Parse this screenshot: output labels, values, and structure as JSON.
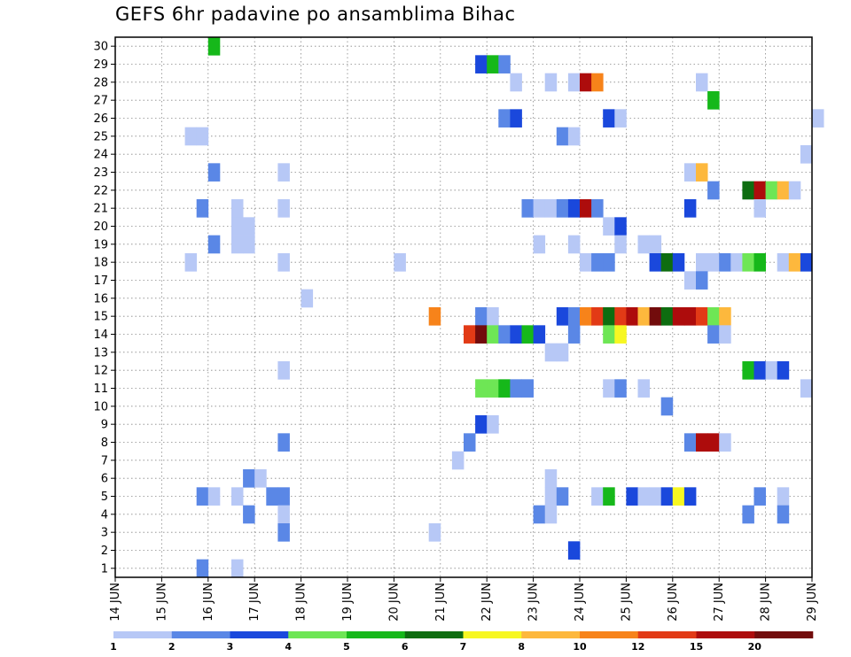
{
  "chart_data": {
    "type": "heatmap",
    "title": "GEFS 6hr padavine po ansamblima Bihac",
    "x_tick_labels": [
      "14 JUN",
      "15 JUN",
      "16 JUN",
      "17 JUN",
      "18 JUN",
      "19 JUN",
      "20 JUN",
      "21 JUN",
      "22 JUN",
      "23 JUN",
      "24 JUN",
      "25 JUN",
      "26 JUN",
      "27 JUN",
      "28 JUN",
      "29 JUN"
    ],
    "x_range_days": [
      14,
      29
    ],
    "y_range": [
      1,
      30
    ],
    "y_ticks": [
      1,
      2,
      3,
      4,
      5,
      6,
      7,
      8,
      9,
      10,
      11,
      12,
      13,
      14,
      15,
      16,
      17,
      18,
      19,
      20,
      21,
      22,
      23,
      24,
      25,
      26,
      27,
      28,
      29,
      30
    ],
    "time_step_hours": 6,
    "grid": true,
    "colorbar": {
      "levels": [
        "1",
        "2",
        "3",
        "4",
        "5",
        "6",
        "7",
        "8",
        "10",
        "12",
        "15",
        "20"
      ],
      "colors": [
        "#b7c8f6",
        "#5a87e6",
        "#1a48dc",
        "#6ee655",
        "#16b81a",
        "#0e6d10",
        "#f7f722",
        "#fdb83d",
        "#f7831a",
        "#e23a16",
        "#ad0c0c",
        "#720c0c"
      ],
      "placement": "bottom"
    },
    "cells": [
      [
        16,
        30,
        5
      ],
      [
        21.75,
        29,
        3
      ],
      [
        22,
        29,
        5
      ],
      [
        22.25,
        29,
        2
      ],
      [
        22.5,
        28,
        1
      ],
      [
        23.25,
        28,
        1
      ],
      [
        23.75,
        28,
        1
      ],
      [
        24,
        28,
        11
      ],
      [
        24.25,
        28,
        9
      ],
      [
        26.5,
        28,
        1
      ],
      [
        26.75,
        27,
        5
      ],
      [
        22.25,
        26,
        2
      ],
      [
        22.5,
        26,
        3
      ],
      [
        24.5,
        26,
        3
      ],
      [
        24.75,
        26,
        1
      ],
      [
        29,
        26,
        1
      ],
      [
        15.5,
        25,
        1
      ],
      [
        15.75,
        25,
        1
      ],
      [
        23.5,
        25,
        2
      ],
      [
        23.75,
        25,
        1
      ],
      [
        28.75,
        24,
        1
      ],
      [
        16,
        23,
        2
      ],
      [
        17.5,
        23,
        1
      ],
      [
        26.25,
        23,
        1
      ],
      [
        26.5,
        23,
        8
      ],
      [
        26.75,
        22,
        2
      ],
      [
        27.5,
        22,
        6
      ],
      [
        27.75,
        22,
        11
      ],
      [
        28,
        22,
        4
      ],
      [
        28.25,
        22,
        8
      ],
      [
        28.5,
        22,
        1
      ],
      [
        15.75,
        21,
        2
      ],
      [
        16.5,
        21,
        1
      ],
      [
        17.5,
        21,
        1
      ],
      [
        22.75,
        21,
        2
      ],
      [
        23,
        21,
        1
      ],
      [
        23.25,
        21,
        1
      ],
      [
        23.5,
        21,
        2
      ],
      [
        23.75,
        21,
        3
      ],
      [
        24,
        21,
        11
      ],
      [
        24.25,
        21,
        2
      ],
      [
        26.25,
        21,
        3
      ],
      [
        27.75,
        21,
        1
      ],
      [
        16.5,
        20,
        1
      ],
      [
        16.75,
        20,
        1
      ],
      [
        24.5,
        20,
        1
      ],
      [
        24.75,
        20,
        3
      ],
      [
        16,
        19,
        2
      ],
      [
        16.5,
        19,
        1
      ],
      [
        16.75,
        19,
        1
      ],
      [
        23,
        19,
        1
      ],
      [
        23.75,
        19,
        1
      ],
      [
        24.75,
        19,
        1
      ],
      [
        25.25,
        19,
        1
      ],
      [
        25.5,
        19,
        1
      ],
      [
        15.5,
        18,
        1
      ],
      [
        17.5,
        18,
        1
      ],
      [
        20,
        18,
        1
      ],
      [
        24,
        18,
        1
      ],
      [
        24.25,
        18,
        2
      ],
      [
        24.5,
        18,
        2
      ],
      [
        25.5,
        18,
        3
      ],
      [
        25.75,
        18,
        6
      ],
      [
        26,
        18,
        3
      ],
      [
        26.5,
        18,
        1
      ],
      [
        26.75,
        18,
        1
      ],
      [
        27,
        18,
        2
      ],
      [
        27.25,
        18,
        1
      ],
      [
        27.5,
        18,
        4
      ],
      [
        27.75,
        18,
        5
      ],
      [
        28.25,
        18,
        1
      ],
      [
        28.5,
        18,
        8
      ],
      [
        28.75,
        18,
        3
      ],
      [
        26.25,
        17,
        1
      ],
      [
        26.5,
        17,
        2
      ],
      [
        18,
        16,
        1
      ],
      [
        20.75,
        15,
        9
      ],
      [
        21.75,
        15,
        2
      ],
      [
        22,
        15,
        1
      ],
      [
        23.5,
        15,
        3
      ],
      [
        23.75,
        15,
        2
      ],
      [
        24,
        15,
        9
      ],
      [
        24.25,
        15,
        10
      ],
      [
        24.5,
        15,
        6
      ],
      [
        24.75,
        15,
        10
      ],
      [
        25,
        15,
        11
      ],
      [
        25.25,
        15,
        8
      ],
      [
        25.5,
        15,
        12
      ],
      [
        25.75,
        15,
        6
      ],
      [
        26,
        15,
        11
      ],
      [
        26.25,
        15,
        11
      ],
      [
        26.5,
        15,
        10
      ],
      [
        26.75,
        15,
        4
      ],
      [
        27,
        15,
        8
      ],
      [
        21.5,
        14,
        10
      ],
      [
        21.75,
        14,
        12
      ],
      [
        22,
        14,
        4
      ],
      [
        22.25,
        14,
        2
      ],
      [
        22.5,
        14,
        3
      ],
      [
        22.75,
        14,
        5
      ],
      [
        23,
        14,
        3
      ],
      [
        23.75,
        14,
        2
      ],
      [
        24.5,
        14,
        4
      ],
      [
        24.75,
        14,
        7
      ],
      [
        26.75,
        14,
        2
      ],
      [
        27,
        14,
        1
      ],
      [
        23.25,
        13,
        1
      ],
      [
        23.5,
        13,
        1
      ],
      [
        17.5,
        12,
        1
      ],
      [
        27.5,
        12,
        5
      ],
      [
        27.75,
        12,
        3
      ],
      [
        28,
        12,
        1
      ],
      [
        28.25,
        12,
        3
      ],
      [
        21.75,
        11,
        4
      ],
      [
        22,
        11,
        4
      ],
      [
        22.25,
        11,
        5
      ],
      [
        22.5,
        11,
        2
      ],
      [
        22.75,
        11,
        2
      ],
      [
        24.5,
        11,
        1
      ],
      [
        24.75,
        11,
        2
      ],
      [
        25.25,
        11,
        1
      ],
      [
        28.75,
        11,
        1
      ],
      [
        25.75,
        10,
        2
      ],
      [
        21.75,
        9,
        3
      ],
      [
        22,
        9,
        1
      ],
      [
        17.5,
        8,
        2
      ],
      [
        21.5,
        8,
        2
      ],
      [
        26.25,
        8,
        2
      ],
      [
        26.5,
        8,
        11
      ],
      [
        26.75,
        8,
        11
      ],
      [
        27,
        8,
        1
      ],
      [
        21.25,
        7,
        1
      ],
      [
        16.75,
        6,
        2
      ],
      [
        17,
        6,
        1
      ],
      [
        23.25,
        6,
        1
      ],
      [
        15.75,
        5,
        2
      ],
      [
        16,
        5,
        1
      ],
      [
        16.5,
        5,
        1
      ],
      [
        17.25,
        5,
        2
      ],
      [
        17.5,
        5,
        2
      ],
      [
        23.25,
        5,
        1
      ],
      [
        23.5,
        5,
        2
      ],
      [
        24.25,
        5,
        1
      ],
      [
        24.5,
        5,
        5
      ],
      [
        25,
        5,
        3
      ],
      [
        25.25,
        5,
        1
      ],
      [
        25.5,
        5,
        1
      ],
      [
        25.75,
        5,
        3
      ],
      [
        26,
        5,
        7
      ],
      [
        26.25,
        5,
        3
      ],
      [
        27.75,
        5,
        2
      ],
      [
        28.25,
        5,
        1
      ],
      [
        16.75,
        4,
        2
      ],
      [
        17.5,
        4,
        1
      ],
      [
        23,
        4,
        2
      ],
      [
        23.25,
        4,
        1
      ],
      [
        27.5,
        4,
        2
      ],
      [
        28.25,
        4,
        2
      ],
      [
        17.5,
        3,
        2
      ],
      [
        20.75,
        3,
        1
      ],
      [
        23.75,
        2,
        3
      ],
      [
        15.75,
        1,
        2
      ],
      [
        16.5,
        1,
        1
      ]
    ]
  }
}
